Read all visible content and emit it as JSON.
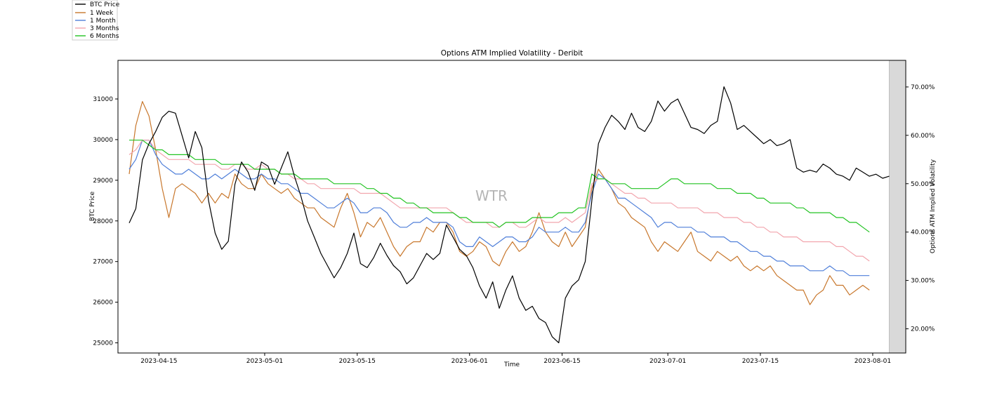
{
  "chart_data": {
    "type": "line",
    "title": "Options ATM Implied Volatility - Deribit",
    "xlabel": "Time",
    "ylabel_left": "BTC Price",
    "ylabel_right": "Options ATM Implied Volatility",
    "watermark": "WTR",
    "grid": false,
    "legend_position": "top-left-outside",
    "x_range_days": [
      -6.2,
      113.0
    ],
    "x_ticks": [
      "2023-04-15",
      "2023-05-01",
      "2023-05-15",
      "2023-06-01",
      "2023-06-15",
      "2023-07-01",
      "2023-07-15",
      "2023-08-01"
    ],
    "x_tick_days": [
      0,
      16,
      30,
      47,
      61,
      77,
      91,
      108
    ],
    "y_left": {
      "range": [
        24750,
        31950
      ],
      "ticks": [
        "25000",
        "26000",
        "27000",
        "28000",
        "29000",
        "30000",
        "31000"
      ],
      "tick_values": [
        25000,
        26000,
        27000,
        28000,
        29000,
        30000,
        31000
      ]
    },
    "y_right": {
      "range": [
        15.0,
        75.5
      ],
      "ticks": [
        "20.00%",
        "30.00%",
        "40.00%",
        "50.00%",
        "60.00%",
        "70.00%"
      ],
      "tick_values": [
        20,
        30,
        40,
        50,
        60,
        70
      ]
    },
    "shaded_region_days": [
      110.5,
      113.0
    ],
    "series_days": [
      -4.5,
      -3.5,
      -2.5,
      -1.5,
      -0.5,
      0.5,
      1.5,
      2.5,
      3.5,
      4.5,
      5.5,
      6.5,
      7.5,
      8.5,
      9.5,
      10.5,
      11.5,
      12.5,
      13.5,
      14.5,
      15.5,
      16.5,
      17.5,
      18.5,
      19.5,
      20.5,
      21.5,
      22.5,
      23.5,
      24.5,
      25.5,
      26.5,
      27.5,
      28.5,
      29.5,
      30.5,
      31.5,
      32.5,
      33.5,
      34.5,
      35.5,
      36.5,
      37.5,
      38.5,
      39.5,
      40.5,
      41.5,
      42.5,
      43.5,
      44.5,
      45.5,
      46.5,
      47.5,
      48.5,
      49.5,
      50.5,
      51.5,
      52.5,
      53.5,
      54.5,
      55.5,
      56.5,
      57.5,
      58.5,
      59.5,
      60.5,
      61.5,
      62.5,
      63.5,
      64.5,
      65.5,
      66.5,
      67.5,
      68.5,
      69.5,
      70.5,
      71.5,
      72.5,
      73.5,
      74.5,
      75.5,
      76.5,
      77.5,
      78.5,
      79.5,
      80.5,
      81.5,
      82.5,
      83.5,
      84.5,
      85.5,
      86.5,
      87.5,
      88.5,
      89.5,
      90.5,
      91.5,
      92.5,
      93.5,
      94.5,
      95.5,
      96.5,
      97.5,
      98.5,
      99.5,
      100.5,
      101.5,
      102.5,
      103.5,
      104.5,
      105.5,
      106.5,
      107.5,
      108.5,
      109.5,
      110.5,
      111.5,
      112.5
    ],
    "series": [
      {
        "name": "BTC Price",
        "color": "#000000",
        "axis": "left",
        "values": [
          27950,
          28300,
          29500,
          29900,
          30200,
          30550,
          30700,
          30650,
          30100,
          29550,
          30200,
          29800,
          28500,
          27700,
          27300,
          27500,
          28900,
          29450,
          29200,
          28750,
          29450,
          29350,
          28900,
          29300,
          29700,
          29100,
          28600,
          28000,
          27600,
          27200,
          26900,
          26600,
          26850,
          27200,
          27700,
          26950,
          26850,
          27100,
          27450,
          27150,
          26900,
          26750,
          26450,
          26600,
          26900,
          27200,
          27050,
          27200,
          27900,
          27600,
          27300,
          27150,
          26850,
          26400,
          26100,
          26500,
          25850,
          26300,
          26650,
          26100,
          25800,
          25900,
          25600,
          25500,
          25150,
          25000,
          26100,
          26400,
          26550,
          27000,
          28500,
          29900,
          30300,
          30600,
          30450,
          30250,
          30650,
          30300,
          30200,
          30450,
          30950,
          30700,
          30900,
          31000,
          30650,
          30300,
          30250,
          30150,
          30350,
          30450,
          31300,
          30900,
          30250,
          30350,
          30200,
          30050,
          29900,
          30000,
          29850,
          29900,
          30000,
          29300,
          29200,
          29250,
          29200,
          29400,
          29300,
          29150,
          29100,
          29000,
          29300,
          29200,
          29100,
          29150,
          29050,
          29100
        ]
      },
      {
        "name": "1 Week",
        "color": "#c8772c",
        "axis": "right",
        "values": [
          52,
          62,
          67,
          64,
          57,
          49,
          43,
          49,
          50,
          49,
          48,
          46,
          48,
          46,
          48,
          47,
          52,
          50,
          49,
          49,
          52,
          50,
          49,
          48,
          49,
          47,
          46,
          45,
          45,
          43,
          42,
          41,
          45,
          48,
          44,
          39,
          42,
          41,
          43,
          40,
          37,
          35,
          37,
          38,
          38,
          41,
          40,
          42,
          42,
          40,
          36,
          35,
          36,
          38,
          37,
          34,
          33,
          36,
          38,
          36,
          37,
          40,
          44,
          40,
          38,
          37,
          40,
          37,
          39,
          41,
          49,
          53,
          51,
          49,
          46,
          45,
          43,
          42,
          41,
          38,
          36,
          38,
          37,
          36,
          38,
          40,
          36,
          35,
          34,
          36,
          35,
          34,
          35,
          33,
          32,
          33,
          32,
          33,
          31,
          30,
          29,
          28,
          28,
          25,
          27,
          28,
          31,
          29,
          29,
          27,
          28,
          29,
          28
        ]
      },
      {
        "name": "1 Month",
        "color": "#4f7fd9",
        "axis": "right",
        "values": [
          53,
          55,
          59,
          59,
          56,
          54,
          53,
          52,
          52,
          53,
          52,
          51,
          51,
          52,
          51,
          52,
          53,
          52,
          51,
          51,
          52,
          51,
          51,
          50,
          50,
          49,
          48,
          48,
          47,
          46,
          45,
          45,
          46,
          47,
          46,
          44,
          44,
          45,
          45,
          44,
          42,
          41,
          41,
          42,
          42,
          43,
          42,
          42,
          42,
          41,
          38,
          37,
          37,
          39,
          38,
          37,
          38,
          39,
          39,
          38,
          38,
          39,
          41,
          40,
          40,
          40,
          41,
          40,
          40,
          42,
          48,
          52,
          51,
          49,
          47,
          47,
          46,
          45,
          44,
          43,
          41,
          42,
          42,
          41,
          41,
          41,
          40,
          40,
          39,
          39,
          39,
          38,
          38,
          37,
          36,
          36,
          35,
          35,
          34,
          34,
          33,
          33,
          33,
          32,
          32,
          32,
          33,
          32,
          32,
          31,
          31,
          31,
          31
        ]
      },
      {
        "name": "3 Months",
        "color": "#f2a5ad",
        "axis": "right",
        "values": [
          56,
          57,
          59,
          59,
          57,
          56,
          55,
          55,
          55,
          55,
          54,
          54,
          54,
          54,
          53,
          53,
          54,
          54,
          53,
          53,
          54,
          53,
          53,
          52,
          52,
          51,
          51,
          50,
          50,
          49,
          49,
          49,
          49,
          49,
          49,
          48,
          48,
          48,
          48,
          47,
          46,
          45,
          45,
          45,
          45,
          45,
          45,
          45,
          45,
          44,
          43,
          42,
          42,
          42,
          42,
          41,
          41,
          42,
          42,
          41,
          41,
          42,
          43,
          42,
          42,
          42,
          43,
          42,
          43,
          44,
          50,
          51,
          51,
          50,
          49,
          48,
          48,
          47,
          47,
          46,
          46,
          46,
          46,
          45,
          45,
          45,
          45,
          44,
          44,
          44,
          43,
          43,
          43,
          42,
          42,
          41,
          41,
          40,
          40,
          39,
          39,
          39,
          38,
          38,
          38,
          38,
          38,
          37,
          37,
          36,
          35,
          35,
          34
        ]
      },
      {
        "name": "6 Months",
        "color": "#22c322",
        "axis": "right",
        "values": [
          59,
          59,
          59,
          58,
          57,
          57,
          56,
          56,
          56,
          56,
          55,
          55,
          55,
          55,
          54,
          54,
          54,
          54,
          54,
          53,
          53,
          53,
          53,
          52,
          52,
          52,
          51,
          51,
          51,
          51,
          51,
          50,
          50,
          50,
          50,
          50,
          49,
          49,
          48,
          48,
          47,
          47,
          46,
          46,
          45,
          45,
          44,
          44,
          44,
          44,
          43,
          43,
          42,
          42,
          42,
          42,
          41,
          42,
          42,
          42,
          42,
          43,
          43,
          43,
          43,
          44,
          44,
          44,
          45,
          45,
          52,
          51,
          51,
          50,
          50,
          50,
          49,
          49,
          49,
          49,
          49,
          50,
          51,
          51,
          50,
          50,
          50,
          50,
          50,
          49,
          49,
          49,
          48,
          48,
          48,
          47,
          47,
          46,
          46,
          46,
          46,
          45,
          45,
          44,
          44,
          44,
          44,
          43,
          43,
          42,
          42,
          41,
          40
        ]
      }
    ]
  }
}
